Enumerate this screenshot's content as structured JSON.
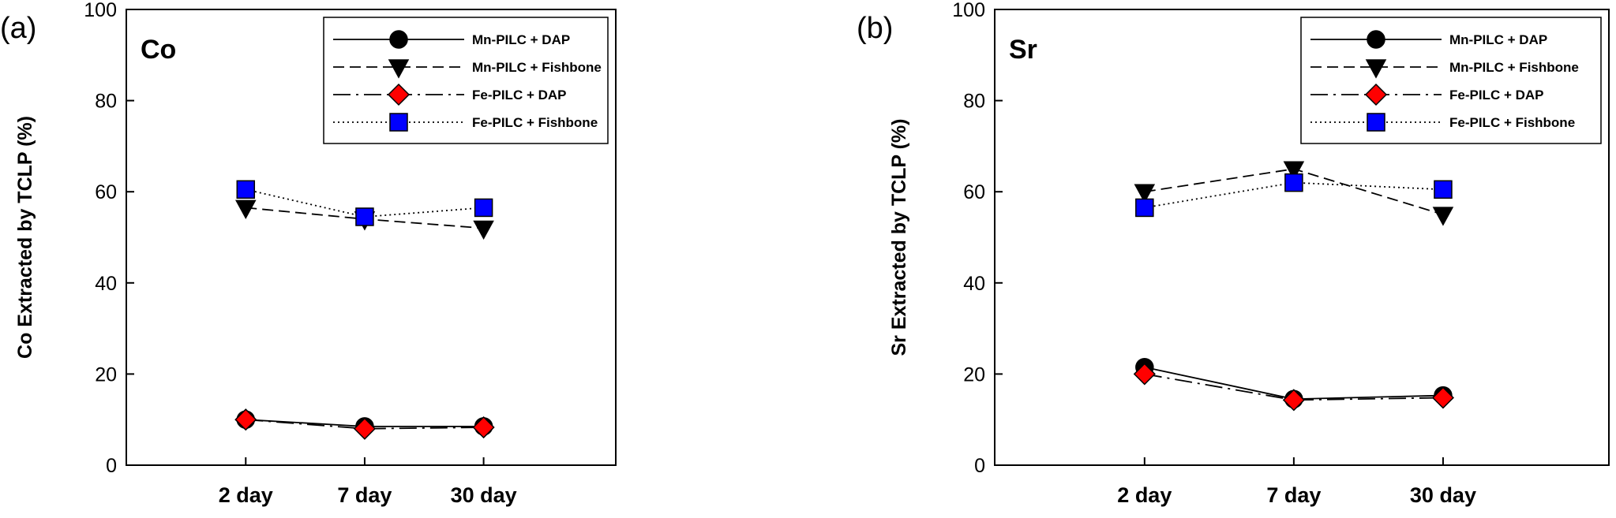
{
  "chart_data": [
    {
      "type": "line",
      "panel_label": "(a)",
      "title": "Co",
      "ylabel": "Co Extracted by TCLP (%)",
      "xlabel": "",
      "categories": [
        "2 day",
        "7 day",
        "30 day"
      ],
      "ylim": [
        0,
        100
      ],
      "yticks": [
        0,
        20,
        40,
        60,
        80,
        100
      ],
      "legend_position": "top-right",
      "series": [
        {
          "name": "Mn-PILC + DAP",
          "values": [
            10,
            8.5,
            8.5
          ],
          "marker": "circle",
          "color": "#000000",
          "line": "solid"
        },
        {
          "name": "Mn-PILC + Fishbone",
          "values": [
            56.5,
            54,
            52
          ],
          "marker": "triangle-down",
          "color": "#000000",
          "line": "dashed"
        },
        {
          "name": "Fe-PILC + DAP",
          "values": [
            10,
            8,
            8.3
          ],
          "marker": "diamond",
          "color": "#ff0000",
          "line": "long-dash"
        },
        {
          "name": "Fe-PILC + Fishbone",
          "values": [
            60.5,
            54.5,
            56.5
          ],
          "marker": "square",
          "color": "#0000ff",
          "line": "dotted"
        }
      ]
    },
    {
      "type": "line",
      "panel_label": "(b)",
      "title": "Sr",
      "ylabel": "Sr Extracted by TCLP (%)",
      "xlabel": "",
      "categories": [
        "2 day",
        "7 day",
        "30 day"
      ],
      "ylim": [
        0,
        100
      ],
      "yticks": [
        0,
        20,
        40,
        60,
        80,
        100
      ],
      "legend_position": "top-right",
      "series": [
        {
          "name": "Mn-PILC + DAP",
          "values": [
            21.5,
            14.5,
            15.3
          ],
          "marker": "circle",
          "color": "#000000",
          "line": "solid"
        },
        {
          "name": "Mn-PILC + Fishbone",
          "values": [
            60,
            65,
            55
          ],
          "marker": "triangle-down",
          "color": "#000000",
          "line": "dashed"
        },
        {
          "name": "Fe-PILC + DAP",
          "values": [
            20,
            14.3,
            14.8
          ],
          "marker": "diamond",
          "color": "#ff0000",
          "line": "long-dash"
        },
        {
          "name": "Fe-PILC + Fishbone",
          "values": [
            56.5,
            62,
            60.5
          ],
          "marker": "square",
          "color": "#0000ff",
          "line": "dotted"
        }
      ]
    }
  ]
}
